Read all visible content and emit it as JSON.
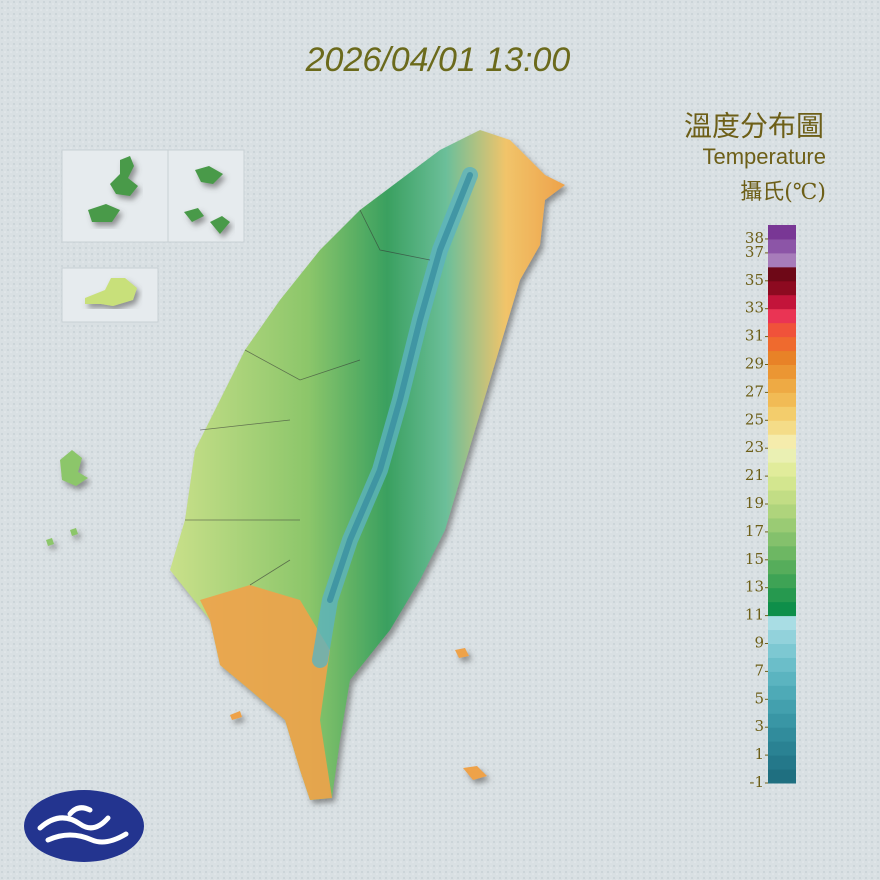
{
  "title": "2026/04/01 13:00",
  "legend": {
    "title": "溫度分布圖",
    "subtitle": "Temperature",
    "unit": "攝氏(℃)",
    "range": [
      -1,
      39
    ],
    "ticks": [
      38,
      37,
      35,
      33,
      31,
      29,
      27,
      25,
      23,
      21,
      19,
      17,
      15,
      13,
      11,
      9,
      7,
      5,
      3,
      1,
      -1
    ],
    "colors": [
      "#1f6f80",
      "#24788a",
      "#2a8293",
      "#318c9c",
      "#3996a5",
      "#43a0ae",
      "#4eaab7",
      "#5bb4c0",
      "#6bbec9",
      "#7dc8d2",
      "#92d2db",
      "#a9dde4",
      "#0e8f4a",
      "#26994f",
      "#3ea355",
      "#56ad5b",
      "#6db763",
      "#84c16c",
      "#9acb74",
      "#afd47c",
      "#c2dd85",
      "#d3e68f",
      "#e1ec9b",
      "#eaf0b3",
      "#f5ecac",
      "#f4dc88",
      "#f3cd6c",
      "#f1bb55",
      "#eeaa44",
      "#eb9633",
      "#e88227",
      "#ef6a2e",
      "#f0523a",
      "#ea3454",
      "#c3143a",
      "#8d0a20",
      "#6e0817",
      "#a77cba",
      "#8c55a7",
      "#793795"
    ]
  }
}
